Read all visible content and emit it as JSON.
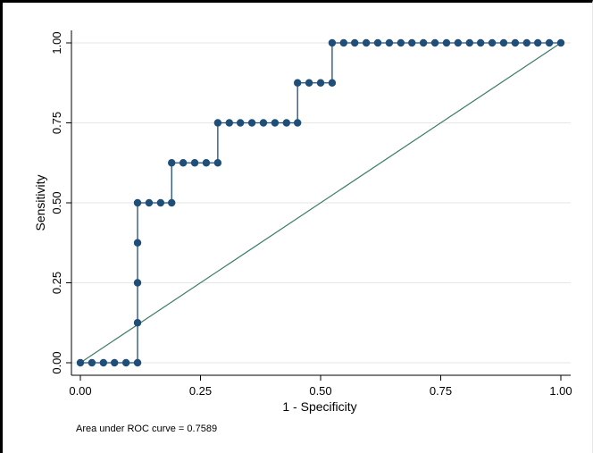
{
  "chart_data": {
    "type": "line",
    "xlabel": "1 - Specificity",
    "ylabel": "Sensitivity",
    "xlim": [
      0,
      1
    ],
    "ylim": [
      0,
      1
    ],
    "xticks": [
      "0.00",
      "0.25",
      "0.50",
      "0.75",
      "1.00"
    ],
    "yticks": [
      "0.00",
      "0.25",
      "0.50",
      "0.75",
      "1.00"
    ],
    "grid": true,
    "colors": {
      "curve": "#1f4e79",
      "reference": "#3b7a6b",
      "grid": "#e6e6e6"
    },
    "series": [
      {
        "values": [
          [
            0.0,
            0.0
          ],
          [
            0.024,
            0.0
          ],
          [
            0.048,
            0.0
          ],
          [
            0.071,
            0.0
          ],
          [
            0.095,
            0.0
          ],
          [
            0.119,
            0.0
          ],
          [
            0.119,
            0.125
          ],
          [
            0.119,
            0.25
          ],
          [
            0.119,
            0.375
          ],
          [
            0.119,
            0.5
          ],
          [
            0.143,
            0.5
          ],
          [
            0.167,
            0.5
          ],
          [
            0.19,
            0.5
          ],
          [
            0.19,
            0.625
          ],
          [
            0.214,
            0.625
          ],
          [
            0.238,
            0.625
          ],
          [
            0.262,
            0.625
          ],
          [
            0.286,
            0.625
          ],
          [
            0.286,
            0.75
          ],
          [
            0.31,
            0.75
          ],
          [
            0.333,
            0.75
          ],
          [
            0.357,
            0.75
          ],
          [
            0.381,
            0.75
          ],
          [
            0.405,
            0.75
          ],
          [
            0.429,
            0.75
          ],
          [
            0.452,
            0.75
          ],
          [
            0.452,
            0.875
          ],
          [
            0.476,
            0.875
          ],
          [
            0.5,
            0.875
          ],
          [
            0.524,
            0.875
          ],
          [
            0.524,
            1.0
          ],
          [
            0.548,
            1.0
          ],
          [
            0.571,
            1.0
          ],
          [
            0.595,
            1.0
          ],
          [
            0.619,
            1.0
          ],
          [
            0.643,
            1.0
          ],
          [
            0.667,
            1.0
          ],
          [
            0.69,
            1.0
          ],
          [
            0.714,
            1.0
          ],
          [
            0.738,
            1.0
          ],
          [
            0.762,
            1.0
          ],
          [
            0.786,
            1.0
          ],
          [
            0.81,
            1.0
          ],
          [
            0.833,
            1.0
          ],
          [
            0.857,
            1.0
          ],
          [
            0.881,
            1.0
          ],
          [
            0.905,
            1.0
          ],
          [
            0.929,
            1.0
          ],
          [
            0.952,
            1.0
          ],
          [
            0.976,
            1.0
          ],
          [
            1.0,
            1.0
          ]
        ]
      }
    ],
    "reference_line": [
      [
        0,
        0
      ],
      [
        1,
        1
      ]
    ],
    "annotation": "Area under ROC curve = 0.7589"
  }
}
